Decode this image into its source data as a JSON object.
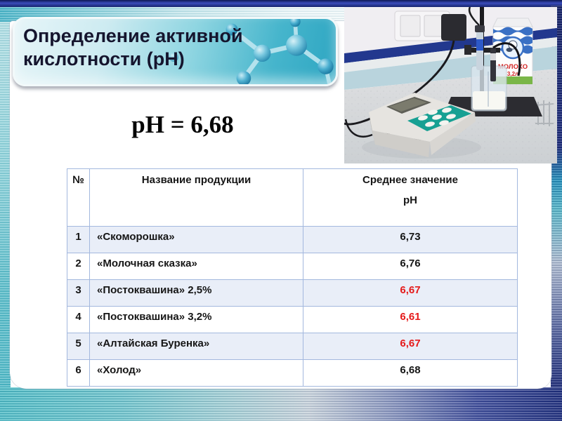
{
  "slide": {
    "title": "Определение активной кислотности (рН)",
    "ph_result": "pH = 6,68"
  },
  "table": {
    "headers": {
      "num": "№",
      "name": "Название продукции",
      "value_line1": "Среднее значение",
      "value_line2": "рН"
    },
    "rows": [
      {
        "num": "1",
        "name": "«Скоморошка»",
        "value": "6,73",
        "highlight": false
      },
      {
        "num": "2",
        "name": "«Молочная сказка»",
        "value": "6,76",
        "highlight": false
      },
      {
        "num": "3",
        "name": "«Постоквашина» 2,5%",
        "value": "6,67",
        "highlight": true
      },
      {
        "num": "4",
        "name": "«Постоквашина» 3,2%",
        "value": "6,61",
        "highlight": true
      },
      {
        "num": "5",
        "name": "«Алтайская Буренка»",
        "value": "6,67",
        "highlight": true
      },
      {
        "num": "6",
        "name": "«Холод»",
        "value": "6,68",
        "highlight": false
      }
    ]
  },
  "photo": {
    "carton_title": "МОЛОКО",
    "carton_volume": "3,2л"
  },
  "colors": {
    "highlight_red": "#e51a1a",
    "band_row": "#e9eef8",
    "table_border": "#a3b8de",
    "banner_teal": "#3db2ca",
    "navy": "#1b2a7b"
  }
}
